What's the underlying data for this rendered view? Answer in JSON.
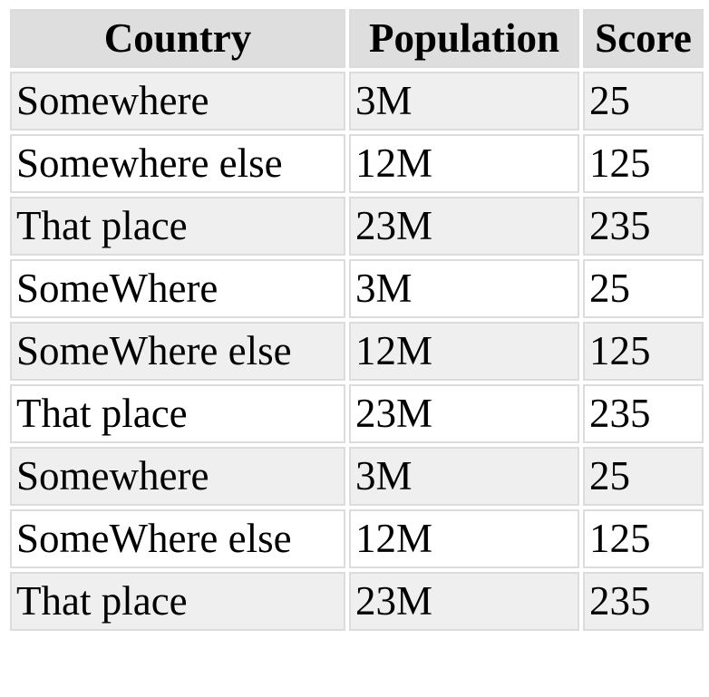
{
  "table": {
    "headers": [
      "Country",
      "Population",
      "Score"
    ],
    "rows": [
      [
        "Somewhere",
        "3M",
        "25"
      ],
      [
        "Somewhere else",
        "12M",
        "125"
      ],
      [
        "That place",
        "23M",
        "235"
      ],
      [
        "SomeWhere",
        "3M",
        "25"
      ],
      [
        "SomeWhere else",
        "12M",
        "125"
      ],
      [
        "That place",
        "23M",
        "235"
      ],
      [
        "Somewhere",
        "3M",
        "25"
      ],
      [
        "SomeWhere else",
        "12M",
        "125"
      ],
      [
        "That place",
        "23M",
        "235"
      ]
    ],
    "colors": {
      "header_bg": "#dedede",
      "shaded_row_bg": "#efefef",
      "plain_row_bg": "#ffffff",
      "border": "#dcdcdc"
    }
  }
}
